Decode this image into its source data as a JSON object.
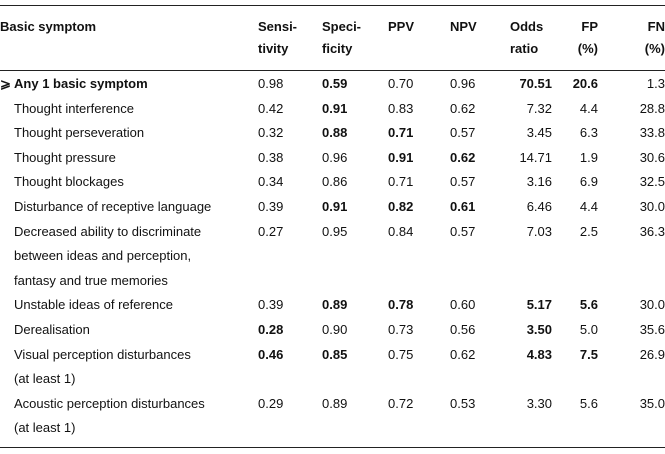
{
  "headers": [
    "Basic symptom",
    "Sensi-\ntivity",
    "Speci-\nficity",
    "PPV",
    "NPV",
    "Odds\nratio",
    "FP\n(%)",
    "FN\n(%)"
  ],
  "header_lines": [
    [
      "Basic symptom"
    ],
    [
      "Sensi-",
      "tivity"
    ],
    [
      "Speci-",
      "ficity"
    ],
    [
      "PPV"
    ],
    [
      "NPV"
    ],
    [
      "Odds",
      "ratio"
    ],
    [
      "FP",
      "(%)"
    ],
    [
      "FN",
      "(%)"
    ]
  ],
  "rows": [
    {
      "label": [
        "⩾ Any 1 basic symptom"
      ],
      "label_bold": true,
      "values": [
        "0.98",
        "0.59",
        "0.70",
        "0.96",
        "70.51",
        "20.6",
        "1.3"
      ],
      "bold": [
        false,
        true,
        false,
        false,
        true,
        true,
        false
      ]
    },
    {
      "label": [
        "Thought interference"
      ],
      "values": [
        "0.42",
        "0.91",
        "0.83",
        "0.62",
        "7.32",
        "4.4",
        "28.8"
      ],
      "bold": [
        false,
        true,
        false,
        false,
        false,
        false,
        false
      ]
    },
    {
      "label": [
        "Thought perseveration"
      ],
      "values": [
        "0.32",
        "0.88",
        "0.71",
        "0.57",
        "3.45",
        "6.3",
        "33.8"
      ],
      "bold": [
        false,
        true,
        true,
        false,
        false,
        false,
        false
      ]
    },
    {
      "label": [
        "Thought pressure"
      ],
      "values": [
        "0.38",
        "0.96",
        "0.91",
        "0.62",
        "14.71",
        "1.9",
        "30.6"
      ],
      "bold": [
        false,
        false,
        true,
        true,
        false,
        false,
        false
      ]
    },
    {
      "label": [
        "Thought blockages"
      ],
      "values": [
        "0.34",
        "0.86",
        "0.71",
        "0.57",
        "3.16",
        "6.9",
        "32.5"
      ],
      "bold": [
        false,
        false,
        false,
        false,
        false,
        false,
        false
      ]
    },
    {
      "label": [
        "Disturbance of receptive language"
      ],
      "values": [
        "0.39",
        "0.91",
        "0.82",
        "0.61",
        "6.46",
        "4.4",
        "30.0"
      ],
      "bold": [
        false,
        true,
        true,
        true,
        false,
        false,
        false
      ]
    },
    {
      "label": [
        "Decreased ability to discriminate",
        "between ideas and perception,",
        "fantasy and true memories"
      ],
      "values": [
        "0.27",
        "0.95",
        "0.84",
        "0.57",
        "7.03",
        "2.5",
        "36.3"
      ],
      "bold": [
        false,
        false,
        false,
        false,
        false,
        false,
        false
      ]
    },
    {
      "label": [
        "Unstable ideas of reference"
      ],
      "values": [
        "0.39",
        "0.89",
        "0.78",
        "0.60",
        "5.17",
        "5.6",
        "30.0"
      ],
      "bold": [
        false,
        true,
        true,
        false,
        true,
        true,
        false
      ]
    },
    {
      "label": [
        "Derealisation"
      ],
      "values": [
        "0.28",
        "0.90",
        "0.73",
        "0.56",
        "3.50",
        "5.0",
        "35.6"
      ],
      "bold": [
        true,
        false,
        false,
        false,
        true,
        false,
        false
      ]
    },
    {
      "label": [
        "Visual perception disturbances",
        "(at least 1)"
      ],
      "values": [
        "0.46",
        "0.85",
        "0.75",
        "0.62",
        "4.83",
        "7.5",
        "26.9"
      ],
      "bold": [
        true,
        true,
        false,
        false,
        true,
        true,
        false
      ]
    },
    {
      "label": [
        "Acoustic perception disturbances",
        "(at least 1)"
      ],
      "values": [
        "0.29",
        "0.89",
        "0.72",
        "0.53",
        "3.30",
        "5.6",
        "35.0"
      ],
      "bold": [
        false,
        false,
        false,
        false,
        false,
        false,
        false
      ]
    }
  ]
}
